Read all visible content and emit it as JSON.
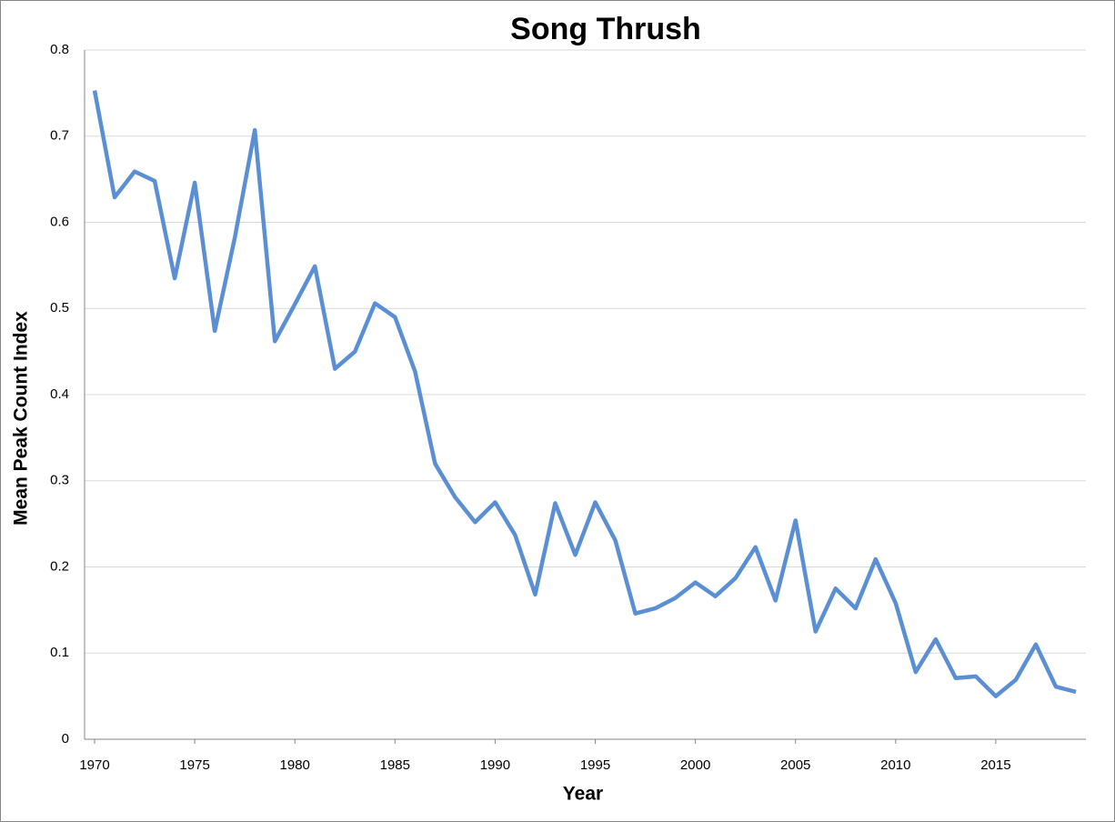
{
  "chart_data": {
    "type": "line",
    "title": "Song Thrush",
    "x_label": "Year",
    "y_label": "Mean Peak Count Index",
    "x": [
      1970,
      1971,
      1972,
      1973,
      1974,
      1975,
      1976,
      1977,
      1978,
      1979,
      1980,
      1981,
      1982,
      1983,
      1984,
      1985,
      1986,
      1987,
      1988,
      1989,
      1990,
      1991,
      1992,
      1993,
      1994,
      1995,
      1996,
      1997,
      1998,
      1999,
      2000,
      2001,
      2002,
      2003,
      2004,
      2005,
      2006,
      2007,
      2008,
      2009,
      2010,
      2011,
      2012,
      2013,
      2014,
      2015,
      2016,
      2017,
      2018,
      2019
    ],
    "series": [
      {
        "color": "#5b8fd4",
        "values": [
          0.753,
          0.629,
          0.659,
          0.648,
          0.535,
          0.646,
          0.474,
          0.582,
          0.707,
          0.462,
          0.505,
          0.549,
          0.43,
          0.45,
          0.506,
          0.49,
          0.427,
          0.32,
          0.281,
          0.252,
          0.275,
          0.237,
          0.168,
          0.274,
          0.214,
          0.275,
          0.231,
          0.146,
          0.152,
          0.164,
          0.182,
          0.166,
          0.187,
          0.223,
          0.161,
          0.254,
          0.125,
          0.175,
          0.152,
          0.209,
          0.158,
          0.078,
          0.116,
          0.071,
          0.073,
          0.05,
          0.069,
          0.11,
          0.061,
          0.055
        ]
      }
    ],
    "xlim": [
      1969.5,
      2019.5
    ],
    "xticks": [
      1970,
      1975,
      1980,
      1985,
      1990,
      1995,
      2000,
      2005,
      2010,
      2015
    ],
    "ylim": [
      0,
      0.8
    ],
    "yticks": [
      0,
      0.1,
      0.2,
      0.3,
      0.4,
      0.5,
      0.6,
      0.7,
      0.8
    ],
    "grid": true
  }
}
